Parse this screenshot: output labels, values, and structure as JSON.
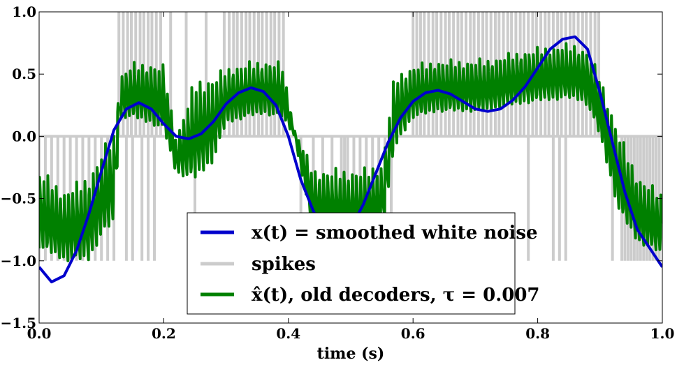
{
  "chart_data": {
    "type": "line",
    "xlabel": "time (s)",
    "ylabel": "",
    "xlim": [
      0.0,
      1.0
    ],
    "ylim": [
      -1.5,
      1.0
    ],
    "x_ticks": [
      "0.0",
      "0.2",
      "0.4",
      "0.6",
      "0.8",
      "1.0"
    ],
    "y_ticks": [
      "1.0",
      "0.5",
      "0.0",
      "−0.5",
      "−1.0",
      "−1.5"
    ],
    "grid": false,
    "legend_position": "bottom-center",
    "series": [
      {
        "name": "x(t) = smoothed white noise",
        "color": "#0000cc",
        "x": [
          0.0,
          0.02,
          0.04,
          0.06,
          0.08,
          0.1,
          0.12,
          0.14,
          0.16,
          0.18,
          0.2,
          0.22,
          0.24,
          0.26,
          0.28,
          0.3,
          0.32,
          0.34,
          0.36,
          0.38,
          0.4,
          0.42,
          0.44,
          0.46,
          0.48,
          0.5,
          0.52,
          0.54,
          0.56,
          0.58,
          0.6,
          0.62,
          0.64,
          0.66,
          0.68,
          0.7,
          0.72,
          0.74,
          0.76,
          0.78,
          0.8,
          0.82,
          0.84,
          0.86,
          0.88,
          0.9,
          0.92,
          0.94,
          0.96,
          0.98,
          1.0
        ],
        "y": [
          -1.05,
          -1.17,
          -1.12,
          -0.92,
          -0.62,
          -0.28,
          0.05,
          0.22,
          0.27,
          0.22,
          0.1,
          0.0,
          -0.02,
          0.02,
          0.12,
          0.26,
          0.35,
          0.39,
          0.36,
          0.25,
          0.0,
          -0.35,
          -0.6,
          -0.78,
          -0.82,
          -0.74,
          -0.55,
          -0.3,
          -0.05,
          0.15,
          0.28,
          0.35,
          0.37,
          0.34,
          0.28,
          0.22,
          0.2,
          0.22,
          0.29,
          0.4,
          0.55,
          0.7,
          0.78,
          0.8,
          0.7,
          0.35,
          -0.05,
          -0.45,
          -0.75,
          -0.9,
          -1.05
        ]
      },
      {
        "name": "spikes",
        "color": "#cccccc",
        "up_times": [
          0.128,
          0.135,
          0.142,
          0.148,
          0.155,
          0.162,
          0.168,
          0.175,
          0.181,
          0.188,
          0.195,
          0.211,
          0.236,
          0.268,
          0.297,
          0.305,
          0.312,
          0.318,
          0.325,
          0.332,
          0.338,
          0.345,
          0.352,
          0.358,
          0.365,
          0.372,
          0.378,
          0.385,
          0.392,
          0.6,
          0.606,
          0.612,
          0.618,
          0.625,
          0.632,
          0.638,
          0.645,
          0.652,
          0.658,
          0.665,
          0.672,
          0.678,
          0.685,
          0.692,
          0.698,
          0.705,
          0.712,
          0.718,
          0.725,
          0.732,
          0.738,
          0.745,
          0.752,
          0.758,
          0.765,
          0.772,
          0.778,
          0.785,
          0.792,
          0.798,
          0.805,
          0.812,
          0.818,
          0.825,
          0.832,
          0.838,
          0.845,
          0.852,
          0.858,
          0.865,
          0.872,
          0.878,
          0.885,
          0.892,
          0.898
        ],
        "down_times": [
          0.0,
          0.01,
          0.02,
          0.03,
          0.04,
          0.05,
          0.06,
          0.07,
          0.08,
          0.09,
          0.1,
          0.11,
          0.12,
          0.14,
          0.15,
          0.165,
          0.175,
          0.185,
          0.25,
          0.42,
          0.44,
          0.455,
          0.47,
          0.485,
          0.49,
          0.495,
          0.505,
          0.515,
          0.525,
          0.535,
          0.545,
          0.555,
          0.565,
          0.785,
          0.825,
          0.835,
          0.845,
          0.92,
          0.935,
          0.94,
          0.945,
          0.95,
          0.955,
          0.96,
          0.965,
          0.97,
          0.975,
          0.98,
          0.985,
          0.99,
          0.995
        ],
        "spike_low": -1.0,
        "spike_high": 1.0
      },
      {
        "name": "x̂(t), old decoders, τ = 0.007",
        "color": "#008000",
        "envelope_upper": {
          "x": [
            0.0,
            0.04,
            0.08,
            0.1,
            0.12,
            0.13,
            0.15,
            0.18,
            0.2,
            0.22,
            0.25,
            0.28,
            0.3,
            0.33,
            0.36,
            0.39,
            0.41,
            0.44,
            0.48,
            0.52,
            0.55,
            0.57,
            0.6,
            0.64,
            0.68,
            0.72,
            0.76,
            0.8,
            0.84,
            0.86,
            0.88,
            0.9,
            0.93,
            0.96,
            1.0
          ],
          "y": [
            -0.25,
            -0.42,
            -0.3,
            -0.1,
            0.05,
            0.5,
            0.6,
            0.6,
            0.58,
            0.0,
            0.48,
            0.5,
            0.56,
            0.6,
            0.62,
            0.6,
            0.05,
            -0.25,
            -0.25,
            -0.25,
            -0.2,
            0.5,
            0.58,
            0.62,
            0.62,
            0.63,
            0.68,
            0.72,
            0.75,
            0.75,
            0.7,
            0.5,
            0.05,
            -0.3,
            -0.45
          ]
        },
        "envelope_lower": {
          "x": [
            0.0,
            0.04,
            0.08,
            0.1,
            0.12,
            0.13,
            0.15,
            0.18,
            0.2,
            0.22,
            0.25,
            0.28,
            0.3,
            0.33,
            0.36,
            0.39,
            0.41,
            0.44,
            0.48,
            0.52,
            0.55,
            0.57,
            0.6,
            0.64,
            0.68,
            0.72,
            0.76,
            0.8,
            0.84,
            0.86,
            0.88,
            0.9,
            0.93,
            0.96,
            1.0
          ],
          "y": [
            -0.9,
            -1.0,
            -1.0,
            -0.8,
            -0.7,
            0.15,
            0.15,
            0.1,
            0.05,
            -0.3,
            -0.35,
            -0.2,
            0.1,
            0.15,
            0.18,
            0.15,
            0.0,
            -0.8,
            -0.85,
            -0.85,
            -0.8,
            -0.1,
            0.15,
            0.2,
            0.2,
            0.2,
            0.25,
            0.28,
            0.3,
            0.3,
            0.25,
            0.0,
            -0.6,
            -0.85,
            -0.95
          ]
        }
      }
    ]
  }
}
